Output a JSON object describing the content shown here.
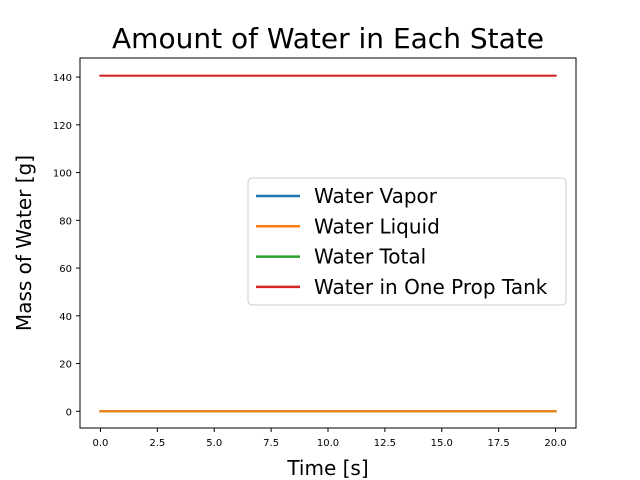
{
  "chart_data": {
    "type": "line",
    "title": "Amount of Water in Each State",
    "xlabel": "Time [s]",
    "ylabel": "Mass of Water [g]",
    "xlim": [
      -0.9,
      20.9
    ],
    "ylim": [
      -7,
      148
    ],
    "xticks": [
      0.0,
      2.5,
      5.0,
      7.5,
      10.0,
      12.5,
      15.0,
      17.5,
      20.0
    ],
    "xtick_labels": [
      "0.0",
      "2.5",
      "5.0",
      "7.5",
      "10.0",
      "12.5",
      "15.0",
      "17.5",
      "20.0"
    ],
    "yticks": [
      0,
      20,
      40,
      60,
      80,
      100,
      120,
      140
    ],
    "ytick_labels": [
      "0",
      "20",
      "40",
      "60",
      "80",
      "100",
      "120",
      "140"
    ],
    "grid": false,
    "legend_position": "center-right",
    "series": [
      {
        "name": "Water Vapor",
        "color": "#1f77b4",
        "x": [
          0,
          20
        ],
        "y": [
          0,
          0
        ]
      },
      {
        "name": "Water Liquid",
        "color": "#ff7f0e",
        "x": [
          0,
          20
        ],
        "y": [
          0,
          0
        ]
      },
      {
        "name": "Water Total",
        "color": "#2ca02c",
        "x": [
          0,
          20
        ],
        "y": [
          0,
          0
        ]
      },
      {
        "name": "Water in One Prop Tank",
        "color": "#d62728",
        "x": [
          0,
          20
        ],
        "y": [
          140.6,
          140.6
        ]
      }
    ],
    "draw_order": [
      0,
      2,
      1,
      3
    ]
  }
}
